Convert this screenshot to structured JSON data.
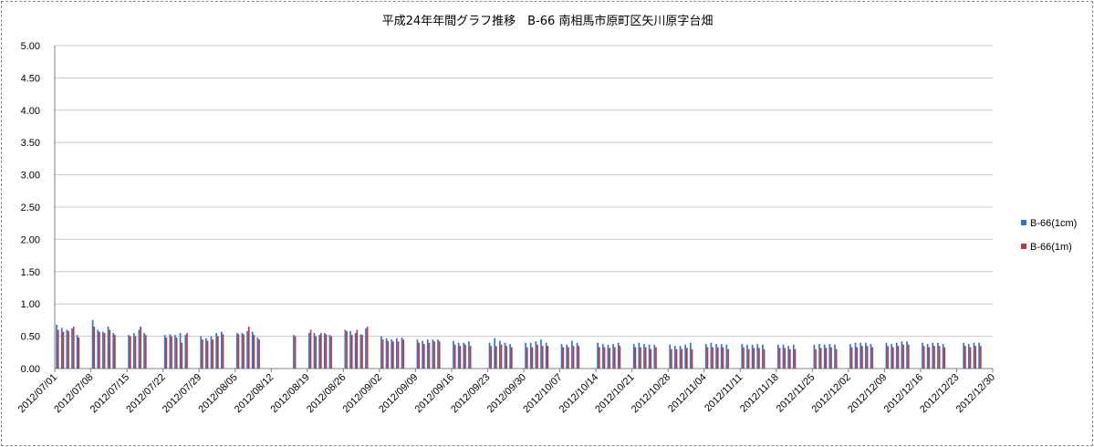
{
  "chart_data": {
    "type": "bar",
    "title": "平成24年年間グラフ推移　B-66 南相馬市原町区矢川原字台畑",
    "ylim": [
      0,
      5
    ],
    "yticks": [
      "0.00",
      "0.50",
      "1.00",
      "1.50",
      "2.00",
      "2.50",
      "3.00",
      "3.50",
      "4.00",
      "4.50",
      "5.00"
    ],
    "xlim": [
      "2012/07/01",
      "2012/12/30"
    ],
    "xtick_labels": [
      "2012/07/01",
      "2012/07/08",
      "2012/07/15",
      "2012/07/22",
      "2012/07/29",
      "2012/08/05",
      "2012/08/12",
      "2012/08/19",
      "2012/08/26",
      "2012/09/02",
      "2012/09/09",
      "2012/09/16",
      "2012/09/23",
      "2012/09/30",
      "2012/10/07",
      "2012/10/14",
      "2012/10/21",
      "2012/10/28",
      "2012/11/04",
      "2012/11/11",
      "2012/11/18",
      "2012/11/25",
      "2012/12/02",
      "2012/12/09",
      "2012/12/16",
      "2012/12/23",
      "2012/12/30"
    ],
    "legend_position": "right",
    "grid": true,
    "series": [
      {
        "name": "B-66(1cm)",
        "color": "#2e75c9",
        "points": [
          [
            "2012/07/01",
            0.68
          ],
          [
            "2012/07/02",
            0.63
          ],
          [
            "2012/07/03",
            0.6
          ],
          [
            "2012/07/04",
            0.62
          ],
          [
            "2012/07/05",
            0.52
          ],
          [
            "2012/07/08",
            0.75
          ],
          [
            "2012/07/09",
            0.6
          ],
          [
            "2012/07/10",
            0.57
          ],
          [
            "2012/07/11",
            0.65
          ],
          [
            "2012/07/12",
            0.55
          ],
          [
            "2012/07/15",
            0.52
          ],
          [
            "2012/07/16",
            0.55
          ],
          [
            "2012/07/17",
            0.6
          ],
          [
            "2012/07/18",
            0.55
          ],
          [
            "2012/07/22",
            0.52
          ],
          [
            "2012/07/23",
            0.53
          ],
          [
            "2012/07/24",
            0.52
          ],
          [
            "2012/07/25",
            0.55
          ],
          [
            "2012/07/26",
            0.52
          ],
          [
            "2012/07/29",
            0.5
          ],
          [
            "2012/07/30",
            0.47
          ],
          [
            "2012/07/31",
            0.5
          ],
          [
            "2012/08/01",
            0.55
          ],
          [
            "2012/08/02",
            0.57
          ],
          [
            "2012/08/05",
            0.55
          ],
          [
            "2012/08/06",
            0.55
          ],
          [
            "2012/08/07",
            0.58
          ],
          [
            "2012/08/08",
            0.57
          ],
          [
            "2012/08/09",
            0.48
          ],
          [
            "2012/08/16",
            0.52
          ],
          [
            "2012/08/19",
            0.55
          ],
          [
            "2012/08/20",
            0.55
          ],
          [
            "2012/08/21",
            0.52
          ],
          [
            "2012/08/22",
            0.55
          ],
          [
            "2012/08/23",
            0.52
          ],
          [
            "2012/08/26",
            0.6
          ],
          [
            "2012/08/27",
            0.58
          ],
          [
            "2012/08/28",
            0.55
          ],
          [
            "2012/08/29",
            0.53
          ],
          [
            "2012/08/30",
            0.62
          ],
          [
            "2012/09/02",
            0.5
          ],
          [
            "2012/09/03",
            0.47
          ],
          [
            "2012/09/04",
            0.45
          ],
          [
            "2012/09/05",
            0.47
          ],
          [
            "2012/09/06",
            0.48
          ],
          [
            "2012/09/09",
            0.45
          ],
          [
            "2012/09/10",
            0.43
          ],
          [
            "2012/09/11",
            0.45
          ],
          [
            "2012/09/12",
            0.45
          ],
          [
            "2012/09/13",
            0.45
          ],
          [
            "2012/09/16",
            0.43
          ],
          [
            "2012/09/17",
            0.4
          ],
          [
            "2012/09/18",
            0.4
          ],
          [
            "2012/09/19",
            0.42
          ],
          [
            "2012/09/23",
            0.4
          ],
          [
            "2012/09/24",
            0.47
          ],
          [
            "2012/09/25",
            0.43
          ],
          [
            "2012/09/26",
            0.4
          ],
          [
            "2012/09/27",
            0.38
          ],
          [
            "2012/09/30",
            0.4
          ],
          [
            "2012/10/01",
            0.4
          ],
          [
            "2012/10/02",
            0.42
          ],
          [
            "2012/10/03",
            0.45
          ],
          [
            "2012/10/04",
            0.4
          ],
          [
            "2012/10/07",
            0.38
          ],
          [
            "2012/10/08",
            0.37
          ],
          [
            "2012/10/09",
            0.43
          ],
          [
            "2012/10/10",
            0.4
          ],
          [
            "2012/10/14",
            0.4
          ],
          [
            "2012/10/15",
            0.38
          ],
          [
            "2012/10/16",
            0.37
          ],
          [
            "2012/10/17",
            0.38
          ],
          [
            "2012/10/18",
            0.4
          ],
          [
            "2012/10/21",
            0.38
          ],
          [
            "2012/10/22",
            0.4
          ],
          [
            "2012/10/23",
            0.38
          ],
          [
            "2012/10/24",
            0.37
          ],
          [
            "2012/10/25",
            0.37
          ],
          [
            "2012/10/28",
            0.37
          ],
          [
            "2012/10/29",
            0.35
          ],
          [
            "2012/10/30",
            0.35
          ],
          [
            "2012/10/31",
            0.37
          ],
          [
            "2012/11/01",
            0.4
          ],
          [
            "2012/11/04",
            0.38
          ],
          [
            "2012/11/05",
            0.4
          ],
          [
            "2012/11/06",
            0.38
          ],
          [
            "2012/11/07",
            0.38
          ],
          [
            "2012/11/08",
            0.37
          ],
          [
            "2012/11/11",
            0.38
          ],
          [
            "2012/11/12",
            0.37
          ],
          [
            "2012/11/13",
            0.37
          ],
          [
            "2012/11/14",
            0.38
          ],
          [
            "2012/11/15",
            0.37
          ],
          [
            "2012/11/18",
            0.37
          ],
          [
            "2012/11/19",
            0.37
          ],
          [
            "2012/11/20",
            0.35
          ],
          [
            "2012/11/21",
            0.37
          ],
          [
            "2012/11/25",
            0.37
          ],
          [
            "2012/11/26",
            0.38
          ],
          [
            "2012/11/27",
            0.37
          ],
          [
            "2012/11/28",
            0.38
          ],
          [
            "2012/11/29",
            0.37
          ],
          [
            "2012/12/02",
            0.38
          ],
          [
            "2012/12/03",
            0.4
          ],
          [
            "2012/12/04",
            0.4
          ],
          [
            "2012/12/05",
            0.4
          ],
          [
            "2012/12/06",
            0.38
          ],
          [
            "2012/12/09",
            0.4
          ],
          [
            "2012/12/10",
            0.38
          ],
          [
            "2012/12/11",
            0.4
          ],
          [
            "2012/12/12",
            0.42
          ],
          [
            "2012/12/13",
            0.42
          ],
          [
            "2012/12/16",
            0.4
          ],
          [
            "2012/12/17",
            0.38
          ],
          [
            "2012/12/18",
            0.4
          ],
          [
            "2012/12/19",
            0.4
          ],
          [
            "2012/12/20",
            0.38
          ],
          [
            "2012/12/24",
            0.4
          ],
          [
            "2012/12/25",
            0.38
          ],
          [
            "2012/12/26",
            0.4
          ],
          [
            "2012/12/27",
            0.4
          ]
        ]
      },
      {
        "name": "B-66(1m)",
        "color": "#c0393b",
        "points": [
          [
            "2012/07/01",
            0.6
          ],
          [
            "2012/07/02",
            0.57
          ],
          [
            "2012/07/03",
            0.58
          ],
          [
            "2012/07/04",
            0.65
          ],
          [
            "2012/07/05",
            0.48
          ],
          [
            "2012/07/08",
            0.65
          ],
          [
            "2012/07/09",
            0.57
          ],
          [
            "2012/07/10",
            0.55
          ],
          [
            "2012/07/11",
            0.6
          ],
          [
            "2012/07/12",
            0.52
          ],
          [
            "2012/07/15",
            0.5
          ],
          [
            "2012/07/16",
            0.5
          ],
          [
            "2012/07/17",
            0.65
          ],
          [
            "2012/07/18",
            0.52
          ],
          [
            "2012/07/22",
            0.48
          ],
          [
            "2012/07/23",
            0.5
          ],
          [
            "2012/07/24",
            0.48
          ],
          [
            "2012/07/25",
            0.4
          ],
          [
            "2012/07/26",
            0.55
          ],
          [
            "2012/07/29",
            0.45
          ],
          [
            "2012/07/30",
            0.43
          ],
          [
            "2012/07/31",
            0.45
          ],
          [
            "2012/08/01",
            0.5
          ],
          [
            "2012/08/02",
            0.53
          ],
          [
            "2012/08/05",
            0.53
          ],
          [
            "2012/08/06",
            0.53
          ],
          [
            "2012/08/07",
            0.65
          ],
          [
            "2012/08/08",
            0.52
          ],
          [
            "2012/08/09",
            0.45
          ],
          [
            "2012/08/16",
            0.5
          ],
          [
            "2012/08/19",
            0.6
          ],
          [
            "2012/08/20",
            0.5
          ],
          [
            "2012/08/21",
            0.55
          ],
          [
            "2012/08/22",
            0.53
          ],
          [
            "2012/08/23",
            0.5
          ],
          [
            "2012/08/26",
            0.58
          ],
          [
            "2012/08/27",
            0.52
          ],
          [
            "2012/08/28",
            0.6
          ],
          [
            "2012/08/29",
            0.52
          ],
          [
            "2012/08/30",
            0.65
          ],
          [
            "2012/09/02",
            0.45
          ],
          [
            "2012/09/03",
            0.43
          ],
          [
            "2012/09/04",
            0.42
          ],
          [
            "2012/09/05",
            0.42
          ],
          [
            "2012/09/06",
            0.45
          ],
          [
            "2012/09/09",
            0.4
          ],
          [
            "2012/09/10",
            0.38
          ],
          [
            "2012/09/11",
            0.4
          ],
          [
            "2012/09/12",
            0.42
          ],
          [
            "2012/09/13",
            0.42
          ],
          [
            "2012/09/16",
            0.37
          ],
          [
            "2012/09/17",
            0.35
          ],
          [
            "2012/09/18",
            0.37
          ],
          [
            "2012/09/19",
            0.35
          ],
          [
            "2012/09/23",
            0.35
          ],
          [
            "2012/09/24",
            0.35
          ],
          [
            "2012/09/25",
            0.37
          ],
          [
            "2012/09/26",
            0.35
          ],
          [
            "2012/09/27",
            0.33
          ],
          [
            "2012/09/30",
            0.33
          ],
          [
            "2012/10/01",
            0.33
          ],
          [
            "2012/10/02",
            0.37
          ],
          [
            "2012/10/03",
            0.35
          ],
          [
            "2012/10/04",
            0.35
          ],
          [
            "2012/10/07",
            0.33
          ],
          [
            "2012/10/08",
            0.33
          ],
          [
            "2012/10/09",
            0.35
          ],
          [
            "2012/10/10",
            0.35
          ],
          [
            "2012/10/14",
            0.33
          ],
          [
            "2012/10/15",
            0.33
          ],
          [
            "2012/10/16",
            0.32
          ],
          [
            "2012/10/17",
            0.33
          ],
          [
            "2012/10/18",
            0.35
          ],
          [
            "2012/10/21",
            0.33
          ],
          [
            "2012/10/22",
            0.33
          ],
          [
            "2012/10/23",
            0.33
          ],
          [
            "2012/10/24",
            0.3
          ],
          [
            "2012/10/25",
            0.33
          ],
          [
            "2012/10/28",
            0.3
          ],
          [
            "2012/10/29",
            0.3
          ],
          [
            "2012/10/30",
            0.3
          ],
          [
            "2012/10/31",
            0.32
          ],
          [
            "2012/11/01",
            0.3
          ],
          [
            "2012/11/04",
            0.33
          ],
          [
            "2012/11/05",
            0.33
          ],
          [
            "2012/11/06",
            0.33
          ],
          [
            "2012/11/07",
            0.33
          ],
          [
            "2012/11/08",
            0.3
          ],
          [
            "2012/11/11",
            0.33
          ],
          [
            "2012/11/12",
            0.3
          ],
          [
            "2012/11/13",
            0.32
          ],
          [
            "2012/11/14",
            0.32
          ],
          [
            "2012/11/15",
            0.3
          ],
          [
            "2012/11/18",
            0.32
          ],
          [
            "2012/11/19",
            0.32
          ],
          [
            "2012/11/20",
            0.3
          ],
          [
            "2012/11/21",
            0.3
          ],
          [
            "2012/11/25",
            0.3
          ],
          [
            "2012/11/26",
            0.32
          ],
          [
            "2012/11/27",
            0.32
          ],
          [
            "2012/11/28",
            0.33
          ],
          [
            "2012/11/29",
            0.3
          ],
          [
            "2012/12/02",
            0.33
          ],
          [
            "2012/12/03",
            0.33
          ],
          [
            "2012/12/04",
            0.35
          ],
          [
            "2012/12/05",
            0.35
          ],
          [
            "2012/12/06",
            0.33
          ],
          [
            "2012/12/09",
            0.35
          ],
          [
            "2012/12/10",
            0.33
          ],
          [
            "2012/12/11",
            0.35
          ],
          [
            "2012/12/12",
            0.37
          ],
          [
            "2012/12/13",
            0.37
          ],
          [
            "2012/12/16",
            0.35
          ],
          [
            "2012/12/17",
            0.33
          ],
          [
            "2012/12/18",
            0.35
          ],
          [
            "2012/12/19",
            0.35
          ],
          [
            "2012/12/20",
            0.33
          ],
          [
            "2012/12/24",
            0.35
          ],
          [
            "2012/12/25",
            0.33
          ],
          [
            "2012/12/26",
            0.35
          ],
          [
            "2012/12/27",
            0.35
          ]
        ]
      }
    ]
  }
}
